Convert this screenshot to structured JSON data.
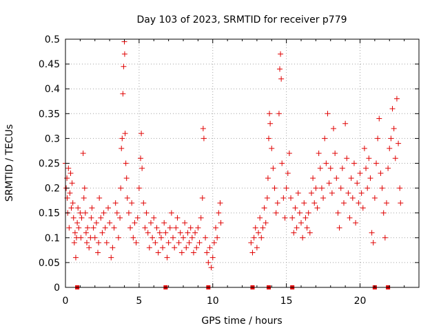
{
  "chart_data": {
    "type": "scatter",
    "title": "Day 103 of 2023, SRMTID for receiver p779",
    "xlabel": "GPS time / hours",
    "ylabel": "SRMTID / TECUs",
    "xlim": [
      0,
      24
    ],
    "ylim": [
      0,
      0.5
    ],
    "x_ticks": [
      0,
      5,
      10,
      15,
      20
    ],
    "x_tick_labels": [
      "0",
      "5",
      "10",
      "15",
      "20"
    ],
    "y_ticks": [
      0,
      0.05,
      0.1,
      0.15,
      0.2,
      0.25,
      0.3,
      0.35,
      0.4,
      0.45,
      0.5
    ],
    "y_tick_labels": [
      "0",
      "0.05",
      "0.1",
      "0.15",
      "0.2",
      "0.25",
      "0.3",
      "0.35",
      "0.4",
      "0.45",
      "0.5"
    ],
    "grid": true,
    "marker": "+",
    "color": "#e00000",
    "series": [
      {
        "name": "SRMTID",
        "points": [
          [
            0.0,
            0.25
          ],
          [
            0.05,
            0.2
          ],
          [
            0.1,
            0.22
          ],
          [
            0.12,
            0.18
          ],
          [
            0.15,
            0.15
          ],
          [
            0.2,
            0.24
          ],
          [
            0.25,
            0.12
          ],
          [
            0.3,
            0.19
          ],
          [
            0.35,
            0.23
          ],
          [
            0.4,
            0.16
          ],
          [
            0.45,
            0.21
          ],
          [
            0.5,
            0.17
          ],
          [
            0.55,
            0.14
          ],
          [
            0.6,
            0.09
          ],
          [
            0.65,
            0.11
          ],
          [
            0.7,
            0.06
          ],
          [
            0.75,
            0.1
          ],
          [
            0.8,
            0.13
          ],
          [
            0.85,
            0.16
          ],
          [
            0.9,
            0.12
          ],
          [
            1.0,
            0.15
          ],
          [
            1.05,
            0.1
          ],
          [
            1.1,
            0.14
          ],
          [
            1.2,
            0.27
          ],
          [
            1.25,
            0.18
          ],
          [
            1.3,
            0.2
          ],
          [
            1.35,
            0.15
          ],
          [
            1.4,
            0.11
          ],
          [
            1.45,
            0.09
          ],
          [
            1.5,
            0.12
          ],
          [
            1.6,
            0.08
          ],
          [
            1.7,
            0.1
          ],
          [
            1.75,
            0.14
          ],
          [
            1.8,
            0.16
          ],
          [
            1.9,
            0.12
          ],
          [
            2.0,
            0.1
          ],
          [
            2.1,
            0.13
          ],
          [
            2.2,
            0.07
          ],
          [
            2.25,
            0.09
          ],
          [
            2.3,
            0.18
          ],
          [
            2.4,
            0.14
          ],
          [
            2.5,
            0.11
          ],
          [
            2.6,
            0.15
          ],
          [
            2.7,
            0.12
          ],
          [
            2.8,
            0.09
          ],
          [
            2.9,
            0.16
          ],
          [
            3.0,
            0.13
          ],
          [
            3.1,
            0.06
          ],
          [
            3.2,
            0.08
          ],
          [
            3.3,
            0.12
          ],
          [
            3.4,
            0.17
          ],
          [
            3.5,
            0.15
          ],
          [
            3.6,
            0.1
          ],
          [
            3.7,
            0.14
          ],
          [
            3.75,
            0.2
          ],
          [
            3.8,
            0.28
          ],
          [
            3.85,
            0.3
          ],
          [
            3.9,
            0.39
          ],
          [
            3.95,
            0.445
          ],
          [
            4.0,
            0.495
          ],
          [
            4.02,
            0.47
          ],
          [
            4.05,
            0.31
          ],
          [
            4.1,
            0.25
          ],
          [
            4.15,
            0.22
          ],
          [
            4.2,
            0.18
          ],
          [
            4.3,
            0.15
          ],
          [
            4.4,
            0.12
          ],
          [
            4.5,
            0.17
          ],
          [
            4.6,
            0.1
          ],
          [
            4.7,
            0.13
          ],
          [
            4.8,
            0.09
          ],
          [
            4.9,
            0.14
          ],
          [
            5.0,
            0.2
          ],
          [
            5.1,
            0.26
          ],
          [
            5.15,
            0.31
          ],
          [
            5.2,
            0.24
          ],
          [
            5.3,
            0.17
          ],
          [
            5.4,
            0.12
          ],
          [
            5.5,
            0.15
          ],
          [
            5.6,
            0.11
          ],
          [
            5.7,
            0.08
          ],
          [
            5.8,
            0.13
          ],
          [
            5.9,
            0.1
          ],
          [
            6.0,
            0.14
          ],
          [
            6.1,
            0.09
          ],
          [
            6.2,
            0.12
          ],
          [
            6.3,
            0.07
          ],
          [
            6.4,
            0.11
          ],
          [
            6.5,
            0.1
          ],
          [
            6.6,
            0.08
          ],
          [
            6.7,
            0.13
          ],
          [
            6.8,
            0.11
          ],
          [
            6.9,
            0.06
          ],
          [
            7.0,
            0.09
          ],
          [
            7.1,
            0.12
          ],
          [
            7.2,
            0.15
          ],
          [
            7.3,
            0.1
          ],
          [
            7.4,
            0.08
          ],
          [
            7.5,
            0.12
          ],
          [
            7.6,
            0.14
          ],
          [
            7.7,
            0.09
          ],
          [
            7.8,
            0.11
          ],
          [
            7.9,
            0.07
          ],
          [
            8.0,
            0.1
          ],
          [
            8.1,
            0.13
          ],
          [
            8.2,
            0.08
          ],
          [
            8.3,
            0.11
          ],
          [
            8.4,
            0.09
          ],
          [
            8.5,
            0.12
          ],
          [
            8.6,
            0.1
          ],
          [
            8.7,
            0.07
          ],
          [
            8.8,
            0.11
          ],
          [
            8.9,
            0.08
          ],
          [
            9.0,
            0.12
          ],
          [
            9.1,
            0.09
          ],
          [
            9.2,
            0.14
          ],
          [
            9.3,
            0.18
          ],
          [
            9.35,
            0.32
          ],
          [
            9.4,
            0.3
          ],
          [
            9.5,
            0.1
          ],
          [
            9.6,
            0.07
          ],
          [
            9.7,
            0.05
          ],
          [
            9.8,
            0.08
          ],
          [
            9.9,
            0.04
          ],
          [
            10.0,
            0.06
          ],
          [
            10.1,
            0.09
          ],
          [
            10.2,
            0.12
          ],
          [
            10.3,
            0.1
          ],
          [
            10.4,
            0.15
          ],
          [
            10.5,
            0.17
          ],
          [
            10.55,
            0.13
          ],
          [
            12.6,
            0.09
          ],
          [
            12.7,
            0.07
          ],
          [
            12.8,
            0.1
          ],
          [
            12.9,
            0.12
          ],
          [
            13.0,
            0.08
          ],
          [
            13.1,
            0.11
          ],
          [
            13.2,
            0.14
          ],
          [
            13.3,
            0.1
          ],
          [
            13.4,
            0.12
          ],
          [
            13.5,
            0.16
          ],
          [
            13.6,
            0.13
          ],
          [
            13.7,
            0.18
          ],
          [
            13.75,
            0.22
          ],
          [
            13.8,
            0.3
          ],
          [
            13.85,
            0.35
          ],
          [
            13.9,
            0.33
          ],
          [
            14.0,
            0.28
          ],
          [
            14.1,
            0.24
          ],
          [
            14.2,
            0.2
          ],
          [
            14.3,
            0.15
          ],
          [
            14.4,
            0.17
          ],
          [
            14.5,
            0.35
          ],
          [
            14.55,
            0.44
          ],
          [
            14.6,
            0.47
          ],
          [
            14.65,
            0.42
          ],
          [
            14.7,
            0.25
          ],
          [
            14.8,
            0.18
          ],
          [
            14.9,
            0.14
          ],
          [
            15.0,
            0.2
          ],
          [
            15.1,
            0.23
          ],
          [
            15.2,
            0.27
          ],
          [
            15.3,
            0.18
          ],
          [
            15.4,
            0.14
          ],
          [
            15.5,
            0.11
          ],
          [
            15.6,
            0.16
          ],
          [
            15.7,
            0.12
          ],
          [
            15.8,
            0.19
          ],
          [
            15.9,
            0.15
          ],
          [
            16.0,
            0.13
          ],
          [
            16.1,
            0.1
          ],
          [
            16.2,
            0.17
          ],
          [
            16.3,
            0.14
          ],
          [
            16.4,
            0.12
          ],
          [
            16.5,
            0.15
          ],
          [
            16.6,
            0.11
          ],
          [
            16.7,
            0.19
          ],
          [
            16.8,
            0.22
          ],
          [
            16.9,
            0.17
          ],
          [
            17.0,
            0.2
          ],
          [
            17.1,
            0.16
          ],
          [
            17.2,
            0.27
          ],
          [
            17.3,
            0.24
          ],
          [
            17.4,
            0.2
          ],
          [
            17.5,
            0.18
          ],
          [
            17.6,
            0.3
          ],
          [
            17.7,
            0.25
          ],
          [
            17.8,
            0.35
          ],
          [
            17.9,
            0.21
          ],
          [
            18.0,
            0.24
          ],
          [
            18.1,
            0.19
          ],
          [
            18.2,
            0.32
          ],
          [
            18.3,
            0.27
          ],
          [
            18.4,
            0.22
          ],
          [
            18.5,
            0.15
          ],
          [
            18.6,
            0.12
          ],
          [
            18.7,
            0.2
          ],
          [
            18.8,
            0.24
          ],
          [
            18.9,
            0.17
          ],
          [
            19.0,
            0.33
          ],
          [
            19.1,
            0.26
          ],
          [
            19.2,
            0.19
          ],
          [
            19.3,
            0.14
          ],
          [
            19.4,
            0.22
          ],
          [
            19.5,
            0.18
          ],
          [
            19.6,
            0.25
          ],
          [
            19.7,
            0.13
          ],
          [
            19.8,
            0.21
          ],
          [
            19.9,
            0.17
          ],
          [
            20.0,
            0.23
          ],
          [
            20.1,
            0.19
          ],
          [
            20.2,
            0.16
          ],
          [
            20.3,
            0.28
          ],
          [
            20.4,
            0.24
          ],
          [
            20.5,
            0.2
          ],
          [
            20.6,
            0.26
          ],
          [
            20.7,
            0.22
          ],
          [
            20.8,
            0.11
          ],
          [
            20.9,
            0.09
          ],
          [
            21.0,
            0.18
          ],
          [
            21.1,
            0.25
          ],
          [
            21.2,
            0.3
          ],
          [
            21.3,
            0.34
          ],
          [
            21.4,
            0.23
          ],
          [
            21.5,
            0.2
          ],
          [
            21.6,
            0.15
          ],
          [
            21.7,
            0.1
          ],
          [
            21.8,
            0.17
          ],
          [
            21.9,
            0.24
          ],
          [
            22.0,
            0.28
          ],
          [
            22.1,
            0.3
          ],
          [
            22.2,
            0.36
          ],
          [
            22.3,
            0.32
          ],
          [
            22.4,
            0.26
          ],
          [
            22.5,
            0.38
          ],
          [
            22.6,
            0.29
          ],
          [
            22.7,
            0.2
          ],
          [
            22.75,
            0.17
          ]
        ]
      }
    ],
    "zero_markers": [
      0.8,
      6.8,
      9.7,
      12.7,
      13.8,
      15.4,
      21.0,
      21.9
    ]
  }
}
